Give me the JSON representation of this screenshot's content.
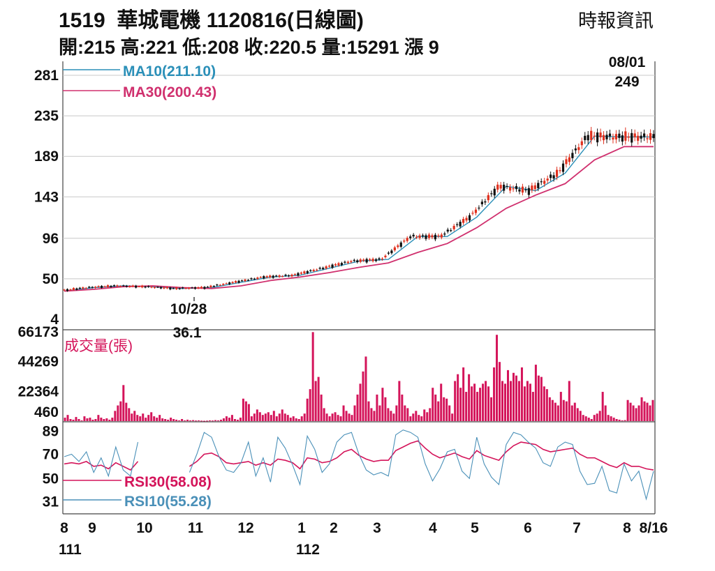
{
  "header": {
    "title": "1519  華城電機 1120816(日線圖)",
    "stats": "開:215 高:221 低:208 收:220.5 量:15291 漲 9",
    "source": "時報資訊"
  },
  "colors": {
    "ma10": "#2a8fb8",
    "ma30": "#d0306e",
    "up": "#e0301e",
    "down": "#111111",
    "volume": "#d4145a",
    "rsi30": "#d4145a",
    "rsi10": "#4a90b8",
    "grid": "#c8c8c8"
  },
  "chart_data": [
    {
      "type": "line",
      "panel": "price",
      "yticks": [
        281,
        235,
        189,
        143,
        96,
        50,
        4
      ],
      "ylim": [
        4,
        281
      ],
      "legend": [
        {
          "label": "MA10(211.10)",
          "color": "#2a8fb8"
        },
        {
          "label": "MA30(200.43)",
          "color": "#d0306e"
        }
      ],
      "annotations": [
        {
          "date": "08/01",
          "value": "249"
        },
        {
          "date": "10/28",
          "value": "36.1"
        }
      ],
      "x": [
        0,
        5,
        10,
        15,
        20,
        25,
        30,
        35,
        40,
        45,
        50,
        55,
        60,
        65,
        70,
        75,
        80,
        85,
        90,
        95,
        100
      ],
      "series": [
        {
          "name": "MA10",
          "values": [
            36,
            40,
            42,
            41,
            39,
            40,
            46,
            52,
            54,
            62,
            70,
            72,
            98,
            98,
            120,
            155,
            150,
            170,
            212,
            211,
            211
          ]
        },
        {
          "name": "MA30",
          "values": [
            36,
            38,
            41,
            42,
            40,
            39,
            42,
            48,
            52,
            57,
            63,
            68,
            80,
            90,
            108,
            130,
            145,
            158,
            185,
            200,
            200
          ]
        }
      ]
    },
    {
      "type": "bar",
      "panel": "volume",
      "ylabel": "成交量(張)",
      "yticks": [
        66173,
        44269,
        22364,
        460
      ],
      "ylim": [
        460,
        66173
      ],
      "values": [
        3000,
        5000,
        2000,
        1500,
        3500,
        2000,
        1000,
        4000,
        2500,
        3000,
        1500,
        2000,
        5000,
        3000,
        2000,
        2500,
        1500,
        3000,
        8000,
        12000,
        15000,
        27000,
        14000,
        10000,
        6000,
        8000,
        5000,
        4000,
        6000,
        3000,
        5000,
        7000,
        4000,
        3000,
        5000,
        2500,
        2000,
        1500,
        3000,
        2000,
        1500,
        1000,
        2000,
        1000,
        1500,
        1000,
        1200,
        900,
        1000,
        800,
        700,
        800,
        1000,
        900,
        1200,
        1000,
        1500,
        2500,
        4000,
        3000,
        5000,
        2000,
        1500,
        3000,
        17000,
        15000,
        13000,
        4000,
        6000,
        9000,
        7000,
        5000,
        6000,
        7000,
        5000,
        8000,
        4000,
        6000,
        9000,
        6000,
        5000,
        3000,
        4000,
        2500,
        2000,
        4000,
        6000,
        17000,
        24000,
        66000,
        30000,
        33000,
        20000,
        10000,
        6000,
        4000,
        6000,
        7000,
        5000,
        4000,
        12000,
        8000,
        6000,
        5000,
        12000,
        20000,
        28000,
        37000,
        48000,
        15000,
        10000,
        8000,
        20000,
        12000,
        25000,
        18000,
        10000,
        8000,
        6000,
        12000,
        30000,
        20000,
        12000,
        10000,
        4000,
        6000,
        8000,
        5000,
        4000,
        9000,
        7000,
        10000,
        25000,
        20000,
        15000,
        28000,
        18000,
        17000,
        12000,
        6000,
        30000,
        35000,
        25000,
        40000,
        22000,
        35000,
        26000,
        28000,
        22000,
        25000,
        28000,
        30000,
        26000,
        18000,
        40000,
        64000,
        44000,
        30000,
        28000,
        38000,
        30000,
        36000,
        34000,
        30000,
        40000,
        26000,
        30000,
        28000,
        22000,
        42000,
        34000,
        33000,
        26000,
        24000,
        18000,
        16000,
        14000,
        12000,
        22000,
        16000,
        15000,
        30000,
        12000,
        14000,
        10000,
        8000,
        5000,
        4000,
        3000,
        2000,
        5000,
        6000,
        8000,
        22000,
        12000,
        5000,
        4000,
        3000,
        2000,
        1500,
        1000,
        1200,
        16000,
        14000,
        12000,
        10000,
        12000,
        18000,
        15000,
        14000,
        12000,
        16000
      ]
    },
    {
      "type": "line",
      "panel": "rsi",
      "yticks": [
        89,
        70,
        50,
        31
      ],
      "ylim": [
        22,
        95
      ],
      "legend": [
        {
          "label": "RSI30(58.08)",
          "color": "#d4145a"
        },
        {
          "label": "RSI10(55.28)",
          "color": "#4a90b8"
        }
      ],
      "xticks": [
        "8",
        "9",
        "10",
        "11",
        "12",
        "1",
        "2",
        "3",
        "4",
        "5",
        "6",
        "7",
        "8",
        "8/16"
      ],
      "year_labels": [
        "111",
        "112"
      ],
      "series": [
        {
          "name": "RSI30",
          "values": [
            62,
            63,
            62,
            64,
            60,
            61,
            58,
            63,
            60,
            57,
            64,
            null,
            null,
            null,
            null,
            null,
            null,
            60,
            64,
            70,
            71,
            68,
            63,
            62,
            63,
            64,
            61,
            63,
            61,
            66,
            65,
            63,
            58,
            67,
            66,
            63,
            64,
            67,
            72,
            74,
            69,
            66,
            64,
            65,
            65,
            73,
            76,
            79,
            81,
            75,
            70,
            67,
            69,
            71,
            68,
            66,
            73,
            69,
            67,
            65,
            72,
            77,
            80,
            79,
            78,
            74,
            72,
            73,
            74,
            75,
            70,
            67,
            67,
            64,
            61,
            59,
            63,
            60,
            60,
            58,
            57
          ]
        },
        {
          "name": "RSI10",
          "values": [
            68,
            70,
            64,
            72,
            55,
            67,
            52,
            76,
            57,
            52,
            80,
            null,
            null,
            null,
            null,
            null,
            null,
            55,
            70,
            88,
            84,
            68,
            57,
            55,
            63,
            80,
            52,
            67,
            47,
            84,
            75,
            61,
            45,
            85,
            74,
            55,
            62,
            80,
            86,
            88,
            70,
            57,
            53,
            55,
            52,
            86,
            90,
            88,
            84,
            62,
            48,
            58,
            72,
            74,
            56,
            50,
            84,
            62,
            51,
            45,
            78,
            88,
            86,
            80,
            75,
            63,
            60,
            76,
            80,
            78,
            56,
            45,
            46,
            60,
            40,
            38,
            62,
            48,
            56,
            33,
            56
          ]
        }
      ]
    }
  ]
}
